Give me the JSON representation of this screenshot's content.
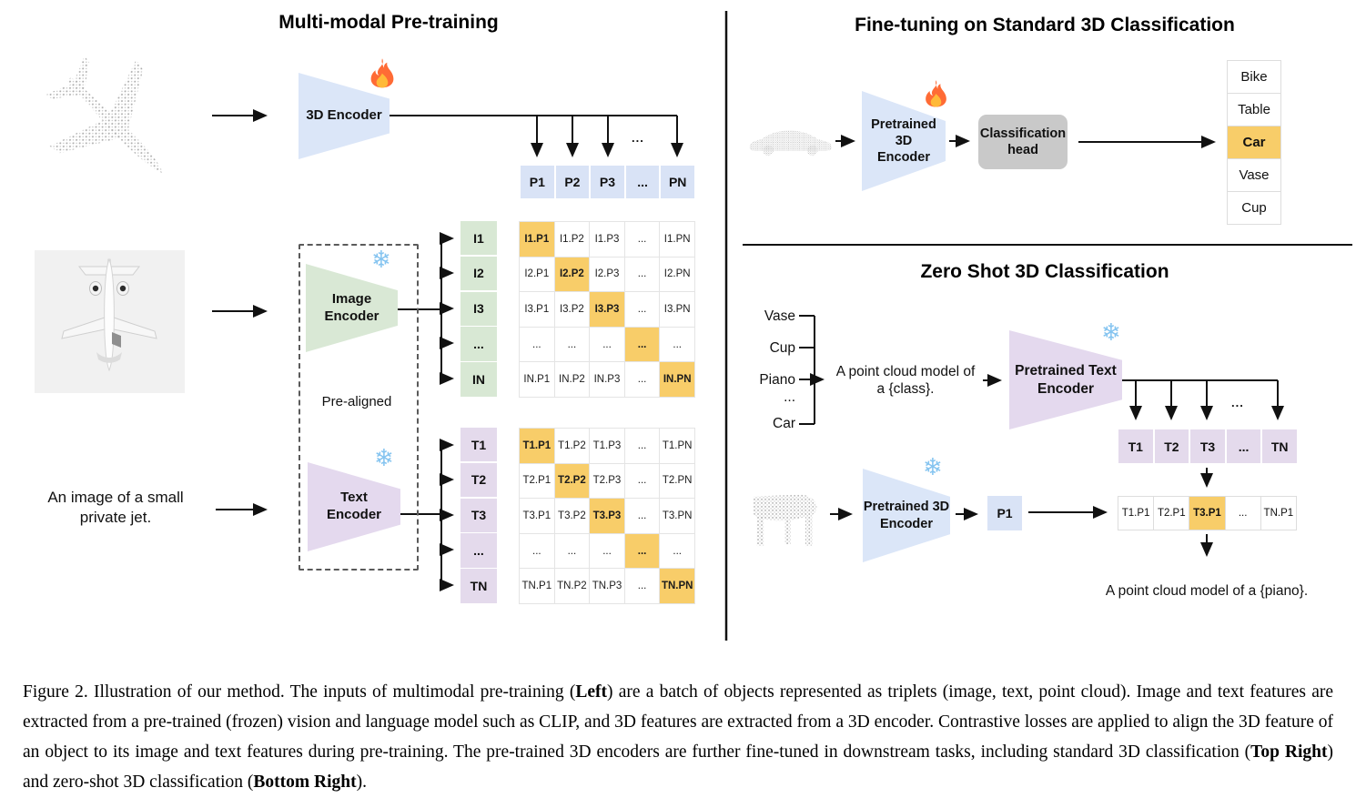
{
  "colors": {
    "highlight_amber": "#f8cd69",
    "encoder_blue": "#dbe6f8",
    "encoder_green": "#d9e8d5",
    "encoder_purple": "#e4d9ee",
    "head_gray": "#c9c9c9"
  },
  "icons": {
    "snowflake_glyph": "❄",
    "fire": "flame",
    "ellipsis": "..."
  },
  "pretrain": {
    "title": "Multi-modal Pre-training",
    "encoder_3d": "3D Encoder",
    "image_encoder": "Image\nEncoder",
    "text_encoder": "Text\nEncoder",
    "prealigned": "Pre-aligned",
    "text_input": "An image of a small\nprivate jet.",
    "dots": "...",
    "p_row": [
      "P1",
      "P2",
      "P3",
      "...",
      "PN"
    ],
    "i_col": [
      "I1",
      "I2",
      "I3",
      "...",
      "IN"
    ],
    "t_col": [
      "T1",
      "T2",
      "T3",
      "...",
      "TN"
    ],
    "i_matrix": [
      [
        {
          "t": "I1.P1",
          "hl": true
        },
        {
          "t": "I1.P2"
        },
        {
          "t": "I1.P3"
        },
        {
          "t": "..."
        },
        {
          "t": "I1.PN"
        }
      ],
      [
        {
          "t": "I2.P1"
        },
        {
          "t": "I2.P2",
          "hl": true
        },
        {
          "t": "I2.P3"
        },
        {
          "t": "..."
        },
        {
          "t": "I2.PN"
        }
      ],
      [
        {
          "t": "I3.P1"
        },
        {
          "t": "I3.P2"
        },
        {
          "t": "I3.P3",
          "hl": true
        },
        {
          "t": "..."
        },
        {
          "t": "I3.PN"
        }
      ],
      [
        {
          "t": "..."
        },
        {
          "t": "..."
        },
        {
          "t": "..."
        },
        {
          "t": "...",
          "hl": true
        },
        {
          "t": "..."
        }
      ],
      [
        {
          "t": "IN.P1"
        },
        {
          "t": "IN.P2"
        },
        {
          "t": "IN.P3"
        },
        {
          "t": "..."
        },
        {
          "t": "IN.PN",
          "hl": true
        }
      ]
    ],
    "t_matrix": [
      [
        {
          "t": "T1.P1",
          "hl": true
        },
        {
          "t": "T1.P2"
        },
        {
          "t": "T1.P3"
        },
        {
          "t": "..."
        },
        {
          "t": "T1.PN"
        }
      ],
      [
        {
          "t": "T2.P1"
        },
        {
          "t": "T2.P2",
          "hl": true
        },
        {
          "t": "T2.P3"
        },
        {
          "t": "..."
        },
        {
          "t": "T2.PN"
        }
      ],
      [
        {
          "t": "T3.P1"
        },
        {
          "t": "T3.P2"
        },
        {
          "t": "T3.P3",
          "hl": true
        },
        {
          "t": "..."
        },
        {
          "t": "T3.PN"
        }
      ],
      [
        {
          "t": "..."
        },
        {
          "t": "..."
        },
        {
          "t": "..."
        },
        {
          "t": "...",
          "hl": true
        },
        {
          "t": "..."
        }
      ],
      [
        {
          "t": "TN.P1"
        },
        {
          "t": "TN.P2"
        },
        {
          "t": "TN.P3"
        },
        {
          "t": "..."
        },
        {
          "t": "TN.PN",
          "hl": true
        }
      ]
    ]
  },
  "finetune": {
    "title": "Fine-tuning on Standard 3D Classification",
    "encoder": "Pretrained 3D\nEncoder",
    "head": "Classification\nhead",
    "classes": [
      {
        "t": "Bike"
      },
      {
        "t": "Table"
      },
      {
        "t": "Car",
        "hl": true
      },
      {
        "t": "Vase"
      },
      {
        "t": "Cup"
      }
    ]
  },
  "zeroshot": {
    "title": "Zero Shot 3D Classification",
    "class_list": [
      "Vase",
      "Cup",
      "Piano",
      "...",
      "Car"
    ],
    "prompt": "A point cloud model of\na {class}.",
    "text_encoder": "Pretrained Text\nEncoder",
    "encoder_3d": "Pretrained 3D\nEncoder",
    "p1": "P1",
    "dots": "...",
    "t_row": [
      "T1",
      "T2",
      "T3",
      "...",
      "TN"
    ],
    "sim_row": [
      {
        "t": "T1.P1"
      },
      {
        "t": "T2.P1"
      },
      {
        "t": "T3.P1",
        "hl": true
      },
      {
        "t": "..."
      },
      {
        "t": "TN.P1"
      }
    ],
    "result": "A point cloud model of a {piano}."
  },
  "caption": {
    "segments": [
      {
        "text": "Figure 2. Illustration of our method. The inputs of multimodal pre-training (",
        "bold": false
      },
      {
        "text": "Left",
        "bold": true
      },
      {
        "text": ") are a batch of objects represented as triplets (image, text, point cloud). Image and text features are extracted from a pre-trained (frozen) vision and language model such as CLIP, and 3D features are extracted from a 3D encoder. Contrastive losses are applied to align the 3D feature of an object to its image and text features during pre-training. The pre-trained 3D encoders are further fine-tuned in downstream tasks, including standard 3D classification (",
        "bold": false
      },
      {
        "text": "Top Right",
        "bold": true
      },
      {
        "text": ") and zero-shot 3D classification (",
        "bold": false
      },
      {
        "text": "Bottom Right",
        "bold": true
      },
      {
        "text": ").",
        "bold": false
      }
    ]
  }
}
